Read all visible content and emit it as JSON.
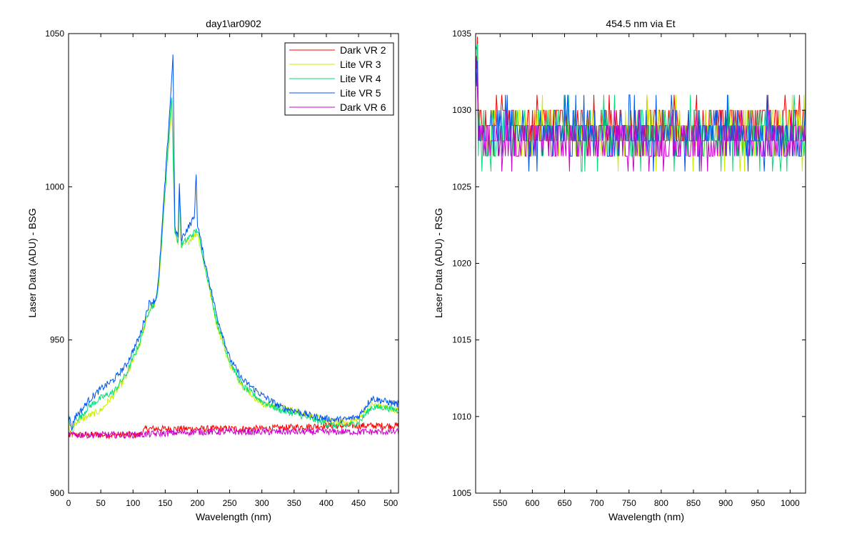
{
  "chart_data": [
    {
      "type": "line",
      "title": "day1\\ar0902",
      "xlabel": "Wavelength (nm)",
      "ylabel": "Laser Data (ADU) - BSG",
      "xlim": [
        0,
        512
      ],
      "ylim": [
        900,
        1050
      ],
      "xticks": [
        0,
        50,
        100,
        150,
        200,
        250,
        300,
        350,
        400,
        450,
        500
      ],
      "yticks": [
        900,
        950,
        1000,
        1050
      ],
      "legend": "top-right",
      "series": [
        {
          "name": "Dark VR 2",
          "color": "#ff0000",
          "x": [
            0,
            60,
            110,
            120,
            140,
            200,
            300,
            400,
            512
          ],
          "y": [
            919,
            919,
            919,
            921,
            921,
            921,
            921,
            922,
            922
          ]
        },
        {
          "name": "Lite VR 3",
          "color": "#ccee00",
          "x": [
            0,
            5,
            10,
            20,
            30,
            50,
            70,
            90,
            110,
            125,
            135,
            140,
            160,
            165,
            170,
            172,
            175,
            200,
            210,
            230,
            250,
            270,
            300,
            330,
            350,
            380,
            410,
            430,
            450,
            470,
            490,
            512
          ],
          "y": [
            922,
            918,
            923,
            924,
            925,
            927,
            932,
            938,
            948,
            960,
            962,
            968,
            1028,
            985,
            981,
            998,
            980,
            985,
            975,
            955,
            942,
            935,
            929,
            928,
            927,
            925,
            923,
            923,
            924,
            929,
            928,
            927
          ]
        },
        {
          "name": "Lite VR 4",
          "color": "#00dd77",
          "x": [
            0,
            5,
            10,
            20,
            30,
            50,
            70,
            90,
            110,
            125,
            135,
            140,
            160,
            165,
            170,
            172,
            175,
            200,
            210,
            230,
            250,
            270,
            300,
            330,
            350,
            380,
            410,
            430,
            450,
            470,
            490,
            512
          ],
          "y": [
            925,
            920,
            924,
            925,
            928,
            931,
            933,
            939,
            949,
            960,
            962,
            969,
            1030,
            986,
            982,
            999,
            981,
            986,
            976,
            956,
            943,
            935,
            930,
            927,
            926,
            924,
            922,
            922,
            923,
            928,
            928,
            927
          ]
        },
        {
          "name": "Lite VR 5",
          "color": "#0055ee",
          "x": [
            0,
            5,
            10,
            20,
            30,
            50,
            70,
            90,
            110,
            125,
            135,
            140,
            160,
            162,
            165,
            170,
            172,
            175,
            195,
            198,
            200,
            210,
            230,
            250,
            270,
            300,
            330,
            350,
            380,
            410,
            430,
            450,
            470,
            490,
            512
          ],
          "y": [
            926,
            921,
            925,
            927,
            930,
            934,
            937,
            942,
            951,
            962,
            963,
            970,
            1035,
            1044,
            986,
            984,
            1001,
            983,
            990,
            1004,
            988,
            977,
            958,
            944,
            937,
            932,
            928,
            927,
            925,
            924,
            924,
            925,
            931,
            930,
            929
          ]
        },
        {
          "name": "Dark VR 6",
          "color": "#cc00cc",
          "x": [
            0,
            100,
            200,
            300,
            400,
            512
          ],
          "y": [
            919,
            919,
            920,
            920,
            920,
            920
          ]
        }
      ]
    },
    {
      "type": "line",
      "title": "454.5 nm via Et",
      "xlabel": "Wavelength (nm)",
      "ylabel": "Laser Data (ADU) - RSG",
      "xlim": [
        512,
        1024
      ],
      "ylim": [
        1005,
        1035
      ],
      "xticks": [
        550,
        600,
        650,
        700,
        750,
        800,
        850,
        900,
        950,
        1000
      ],
      "yticks": [
        1005,
        1010,
        1015,
        1020,
        1025,
        1030,
        1035
      ],
      "series": [
        {
          "name": "Dark VR 2",
          "color": "#ff0000",
          "band": [
            1027,
            1031
          ]
        },
        {
          "name": "Lite VR 3",
          "color": "#ccee00",
          "band": [
            1026,
            1031
          ]
        },
        {
          "name": "Lite VR 4",
          "color": "#00dd77",
          "band": [
            1026,
            1031
          ]
        },
        {
          "name": "Lite VR 5",
          "color": "#0055ee",
          "band": [
            1026,
            1031
          ]
        },
        {
          "name": "Dark VR 6",
          "color": "#cc00cc",
          "band": [
            1026,
            1030
          ]
        }
      ]
    }
  ]
}
